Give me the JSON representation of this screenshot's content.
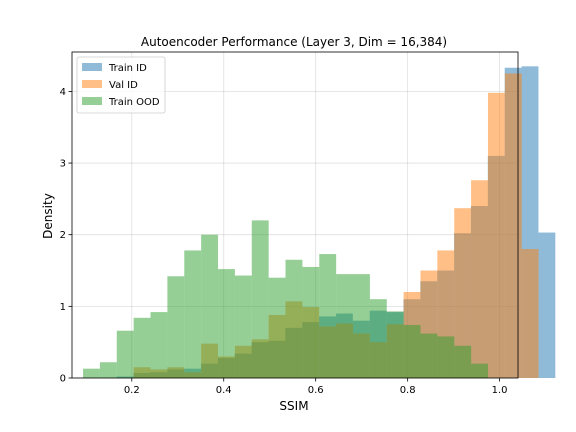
{
  "chart_data": {
    "type": "bar",
    "title": "Autoencoder Performance (Layer 3, Dim = 16,384)",
    "xlabel": "SSIM",
    "ylabel": "Density",
    "xlim": [
      0.07,
      1.04
    ],
    "ylim": [
      0,
      4.55
    ],
    "xticks": [
      0.2,
      0.4,
      0.6,
      0.8,
      1.0
    ],
    "xtick_labels": [
      "0.2",
      "0.4",
      "0.6",
      "0.8",
      "1.0"
    ],
    "yticks": [
      0,
      1,
      2,
      3,
      4
    ],
    "ytick_labels": [
      "0",
      "1",
      "2",
      "3",
      "4"
    ],
    "grid": true,
    "legend_position": "top-left",
    "bin_width": 0.0367,
    "series": [
      {
        "name": "Train ID",
        "color": "#1f77b4",
        "opacity": 0.5,
        "bin_start": 0.167,
        "values": [
          0.02,
          0.07,
          0.08,
          0.12,
          0.13,
          0.2,
          0.28,
          0.34,
          0.5,
          0.52,
          0.7,
          0.78,
          0.86,
          0.9,
          0.8,
          0.94,
          0.92,
          1.1,
          1.35,
          1.5,
          2.02,
          2.4,
          3.1,
          4.33,
          4.35,
          2.03
        ]
      },
      {
        "name": "Val ID",
        "color": "#ff7f0e",
        "opacity": 0.5,
        "bin_start": 0.204,
        "values": [
          0.15,
          0.12,
          0.15,
          0.08,
          0.48,
          0.3,
          0.45,
          0.54,
          0.88,
          1.07,
          0.99,
          0.72,
          0.76,
          0.62,
          0.5,
          0.75,
          1.2,
          1.5,
          1.78,
          2.37,
          2.76,
          3.98,
          4.25,
          1.8
        ]
      },
      {
        "name": "Train OOD",
        "color": "#2ca02c",
        "opacity": 0.5,
        "bin_start": 0.094,
        "values": [
          0.13,
          0.22,
          0.66,
          0.84,
          0.92,
          1.42,
          1.78,
          2.0,
          1.52,
          1.43,
          2.2,
          1.4,
          1.65,
          1.55,
          1.73,
          1.45,
          1.45,
          1.1,
          0.93,
          0.74,
          0.62,
          0.58,
          0.45,
          0.2
        ]
      }
    ]
  }
}
